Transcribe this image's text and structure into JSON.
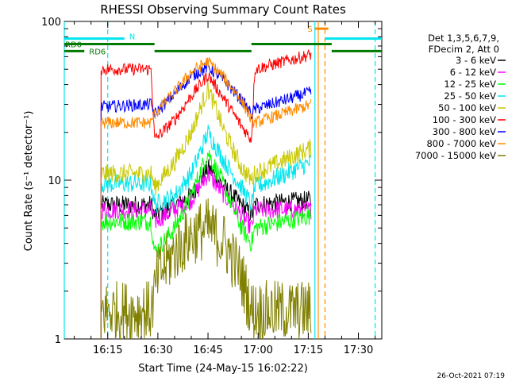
{
  "chart_data": {
    "type": "line",
    "title": "RHESSI Observing Summary Count Rates",
    "xlabel": "Start Time (24-May-15 16:02:22)",
    "ylabel": "Count Rate (s⁻¹ detector⁻¹)",
    "x_range_min": [
      2,
      37
    ],
    "y_scale": "log",
    "y_range": [
      1,
      100
    ],
    "x_ticks": [
      {
        "min": 15,
        "label": "16:15"
      },
      {
        "min": 30,
        "label": "16:30"
      },
      {
        "min": 45,
        "label": "16:45"
      },
      {
        "min": 60,
        "label": "17:00"
      },
      {
        "min": 75,
        "label": "17:15"
      },
      {
        "min": 90,
        "label": "17:30"
      }
    ],
    "y_ticks": [
      {
        "value": 1,
        "label": "1"
      },
      {
        "value": 10,
        "label": "10"
      },
      {
        "value": 100,
        "label": "100"
      }
    ],
    "legend_header": [
      "Det 1,3,5,6,7,9,",
      "FDecim 2, Att 0"
    ],
    "legend_position": "right",
    "flags": [
      {
        "label": "N",
        "color": "#00e5ee",
        "level": 78,
        "spans": [
          [
            2,
            20
          ],
          [
            80,
            97
          ]
        ]
      },
      {
        "label": "S",
        "color": "#ff8c00",
        "level": 90,
        "spans": [
          [
            77,
            81
          ]
        ]
      },
      {
        "label": "RD0",
        "color": "#007a00",
        "level": 72,
        "spans": [
          [
            2,
            29
          ],
          [
            58,
            82
          ]
        ]
      },
      {
        "label": "RD6",
        "color": "#007a00",
        "level": 65,
        "spans": [
          [
            2,
            8
          ],
          [
            29,
            58
          ],
          [
            82,
            97
          ]
        ]
      }
    ],
    "vlines": [
      {
        "min": 2,
        "color": "#00e5ee",
        "dashed": false
      },
      {
        "min": 15,
        "color": "#00e5ee",
        "dashed": true
      },
      {
        "min": 77,
        "color": "#00e5ee",
        "dashed": false
      },
      {
        "min": 78,
        "color": "#ff8c00",
        "dashed": false
      },
      {
        "min": 80,
        "color": "#ff8c00",
        "dashed": true
      },
      {
        "min": 95,
        "color": "#00e5ee",
        "dashed": true
      }
    ],
    "data_window_min": [
      13,
      76
    ],
    "series": [
      {
        "name": "3 - 6 keV",
        "color": "#000000",
        "points": [
          [
            13,
            7
          ],
          [
            28,
            7
          ],
          [
            29,
            6
          ],
          [
            35,
            7
          ],
          [
            40,
            8
          ],
          [
            45,
            12
          ],
          [
            50,
            9
          ],
          [
            55,
            7
          ],
          [
            58,
            6
          ],
          [
            59,
            7
          ],
          [
            76,
            7.5
          ]
        ]
      },
      {
        "name": "6 - 12 keV",
        "color": "#ff00ff",
        "points": [
          [
            13,
            6.5
          ],
          [
            28,
            6.5
          ],
          [
            29,
            5.5
          ],
          [
            35,
            6.5
          ],
          [
            40,
            7.5
          ],
          [
            45,
            11
          ],
          [
            50,
            8
          ],
          [
            55,
            6
          ],
          [
            58,
            5
          ],
          [
            59,
            6.5
          ],
          [
            76,
            6.5
          ]
        ]
      },
      {
        "name": "12 - 25 keV",
        "color": "#00ff00",
        "points": [
          [
            13,
            5.5
          ],
          [
            28,
            5.5
          ],
          [
            29,
            3.5
          ],
          [
            35,
            5
          ],
          [
            40,
            8
          ],
          [
            45,
            15
          ],
          [
            50,
            9
          ],
          [
            55,
            5
          ],
          [
            58,
            4
          ],
          [
            59,
            5
          ],
          [
            76,
            6
          ]
        ]
      },
      {
        "name": "25 - 50 keV",
        "color": "#00e5ee",
        "points": [
          [
            13,
            9.5
          ],
          [
            28,
            9.5
          ],
          [
            29,
            7
          ],
          [
            35,
            8
          ],
          [
            40,
            11
          ],
          [
            45,
            20
          ],
          [
            50,
            13
          ],
          [
            55,
            9
          ],
          [
            58,
            7
          ],
          [
            59,
            9
          ],
          [
            76,
            13
          ]
        ]
      },
      {
        "name": "50 - 100 keV",
        "color": "#c8c800",
        "points": [
          [
            13,
            11
          ],
          [
            28,
            11
          ],
          [
            29,
            9
          ],
          [
            35,
            13
          ],
          [
            40,
            20
          ],
          [
            45,
            38
          ],
          [
            50,
            20
          ],
          [
            55,
            12
          ],
          [
            58,
            10
          ],
          [
            59,
            11
          ],
          [
            76,
            16
          ]
        ]
      },
      {
        "name": "100 - 300 keV",
        "color": "#ff0000",
        "points": [
          [
            13,
            50
          ],
          [
            28,
            50
          ],
          [
            29,
            18
          ],
          [
            35,
            24
          ],
          [
            40,
            34
          ],
          [
            45,
            46
          ],
          [
            50,
            32
          ],
          [
            55,
            22
          ],
          [
            58,
            18
          ],
          [
            59,
            50
          ],
          [
            76,
            62
          ]
        ]
      },
      {
        "name": "300 - 800 keV",
        "color": "#0000ff",
        "points": [
          [
            13,
            29
          ],
          [
            28,
            30
          ],
          [
            29,
            26
          ],
          [
            35,
            35
          ],
          [
            40,
            45
          ],
          [
            45,
            52
          ],
          [
            50,
            42
          ],
          [
            55,
            32
          ],
          [
            58,
            26
          ],
          [
            59,
            28
          ],
          [
            76,
            36
          ]
        ]
      },
      {
        "name": "800 - 7000 keV",
        "color": "#ff8c00",
        "points": [
          [
            13,
            23
          ],
          [
            28,
            23
          ],
          [
            29,
            26
          ],
          [
            35,
            36
          ],
          [
            40,
            48
          ],
          [
            45,
            56
          ],
          [
            50,
            44
          ],
          [
            55,
            32
          ],
          [
            58,
            24
          ],
          [
            59,
            23
          ],
          [
            76,
            30
          ]
        ]
      },
      {
        "name": "7000 - 15000 keV",
        "color": "#808000",
        "points": [
          [
            13,
            1.5
          ],
          [
            28,
            1.5
          ],
          [
            30,
            2.5
          ],
          [
            35,
            3.5
          ],
          [
            40,
            4.5
          ],
          [
            45,
            5
          ],
          [
            50,
            4
          ],
          [
            55,
            2.5
          ],
          [
            58,
            1.5
          ],
          [
            76,
            1.5
          ]
        ]
      }
    ]
  },
  "footer": {
    "timestamp": "26-Oct-2021 07:19"
  }
}
